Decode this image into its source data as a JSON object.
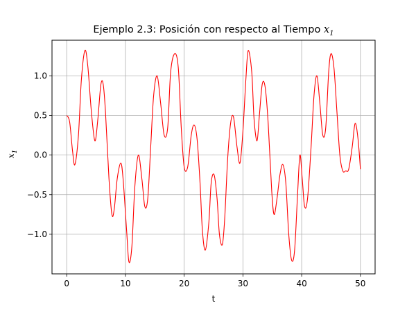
{
  "chart_data": {
    "type": "line",
    "title": "Ejemplo 2.3: Posición con respecto al Tiempo",
    "title_math_var": "x",
    "title_math_sub": "1",
    "xlabel": "t",
    "ylabel_var": "x",
    "ylabel_sub": "1",
    "xlim": [
      -2.5,
      52.5
    ],
    "ylim": [
      -1.5,
      1.45
    ],
    "xticks": [
      0,
      10,
      20,
      30,
      40,
      50
    ],
    "xtick_labels": [
      "0",
      "10",
      "20",
      "30",
      "40",
      "50"
    ],
    "yticks": [
      -1.0,
      -0.5,
      0.0,
      0.5,
      1.0
    ],
    "ytick_labels": [
      "−1.0",
      "−0.5",
      "0.0",
      "0.5",
      "1.0"
    ],
    "grid": true,
    "series": [
      {
        "color": "#ff0000",
        "x": [
          0.0,
          0.5,
          1.0,
          1.4,
          2.0,
          2.5,
          3.1,
          3.6,
          4.2,
          4.8,
          5.3,
          5.8,
          6.2,
          6.6,
          7.2,
          7.7,
          8.1,
          8.6,
          9.2,
          9.6,
          10.2,
          10.6,
          11.1,
          11.6,
          12.2,
          12.8,
          13.3,
          13.8,
          14.3,
          14.8,
          15.4,
          16.0,
          16.6,
          17.2,
          17.7,
          18.4,
          19.0,
          19.5,
          20.0,
          20.6,
          21.2,
          21.7,
          22.2,
          22.7,
          23.1,
          23.6,
          24.2,
          24.6,
          25.1,
          25.6,
          26.0,
          26.5,
          26.9,
          27.4,
          27.9,
          28.4,
          29.0,
          29.5,
          30.0,
          30.5,
          30.9,
          31.5,
          31.9,
          32.4,
          32.8,
          33.3,
          33.8,
          34.3,
          34.9,
          35.3,
          35.8,
          36.3,
          36.8,
          37.3,
          37.8,
          38.3,
          38.8,
          39.3,
          39.7,
          40.1,
          40.5,
          41.0,
          41.6,
          42.1,
          42.6,
          43.1,
          43.6,
          44.1,
          44.6,
          45.0,
          45.5,
          46.0,
          46.5,
          47.0,
          47.5,
          48.0,
          48.6,
          49.1,
          49.6,
          50.0
        ],
        "y": [
          0.5,
          0.42,
          0.05,
          -0.12,
          0.25,
          0.95,
          1.32,
          1.12,
          0.55,
          0.18,
          0.45,
          0.88,
          0.9,
          0.55,
          -0.3,
          -0.75,
          -0.68,
          -0.3,
          -0.1,
          -0.3,
          -0.95,
          -1.35,
          -1.15,
          -0.4,
          0.0,
          -0.3,
          -0.65,
          -0.55,
          0.1,
          0.75,
          1.0,
          0.65,
          0.25,
          0.35,
          1.05,
          1.28,
          1.1,
          0.35,
          -0.15,
          -0.15,
          0.25,
          0.38,
          0.2,
          -0.35,
          -0.95,
          -1.2,
          -0.85,
          -0.35,
          -0.25,
          -0.55,
          -1.0,
          -1.13,
          -0.8,
          -0.05,
          0.4,
          0.48,
          0.1,
          -0.1,
          0.3,
          0.95,
          1.32,
          1.05,
          0.45,
          0.18,
          0.5,
          0.9,
          0.85,
          0.4,
          -0.45,
          -0.75,
          -0.55,
          -0.25,
          -0.12,
          -0.35,
          -1.0,
          -1.33,
          -1.2,
          -0.5,
          0.0,
          -0.3,
          -0.65,
          -0.55,
          0.1,
          0.75,
          1.0,
          0.65,
          0.25,
          0.35,
          1.05,
          1.28,
          1.1,
          0.55,
          0.0,
          -0.2,
          -0.2,
          -0.18,
          0.1,
          0.4,
          0.2,
          -0.18
        ]
      }
    ]
  }
}
